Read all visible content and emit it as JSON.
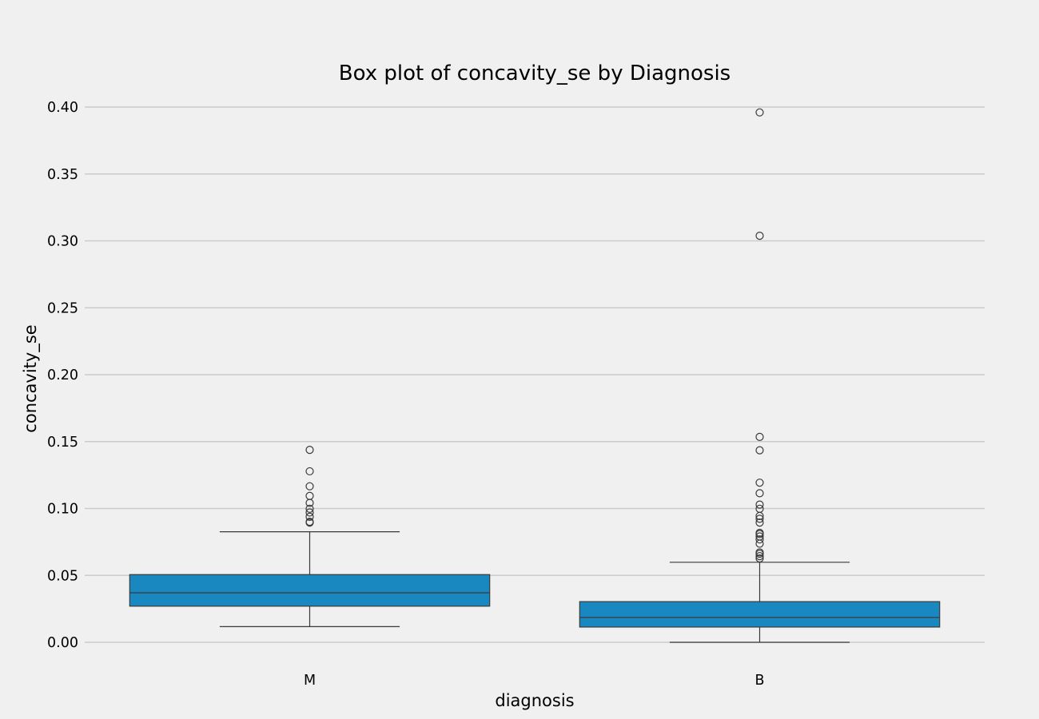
{
  "chart_data": {
    "type": "box",
    "title": "Box plot of concavity_se by Diagnosis",
    "xlabel": "diagnosis",
    "ylabel": "concavity_se",
    "ylim": [
      -0.0114,
      0.4
    ],
    "yticks": [
      "0.00",
      "0.05",
      "0.10",
      "0.15",
      "0.20",
      "0.25",
      "0.30",
      "0.35",
      "0.40"
    ],
    "grid": "horizontal",
    "box_color": "#1a88c0",
    "edge_color": "#3a3a3a",
    "background": "#f0f0f0",
    "grid_color": "#cbcbcb",
    "categories": [
      "M",
      "B"
    ],
    "boxes": [
      {
        "category": "M",
        "whisker_low": 0.0117,
        "q1": 0.027,
        "median": 0.037,
        "q3": 0.0506,
        "whisker_high": 0.0826,
        "outliers": [
          0.0895,
          0.0901,
          0.0938,
          0.097,
          0.0998,
          0.1042,
          0.1094,
          0.1166,
          0.1278,
          0.1438
        ]
      },
      {
        "category": "B",
        "whisker_low": 0.0,
        "q1": 0.0114,
        "median": 0.0186,
        "q3": 0.0304,
        "whisker_high": 0.0598,
        "outliers": [
          0.0627,
          0.0644,
          0.0662,
          0.0672,
          0.0737,
          0.0769,
          0.0791,
          0.0809,
          0.0818,
          0.0895,
          0.0923,
          0.0944,
          0.0998,
          0.1029,
          0.1114,
          0.1193,
          0.1435,
          0.1535,
          0.3038,
          0.396
        ]
      }
    ]
  }
}
